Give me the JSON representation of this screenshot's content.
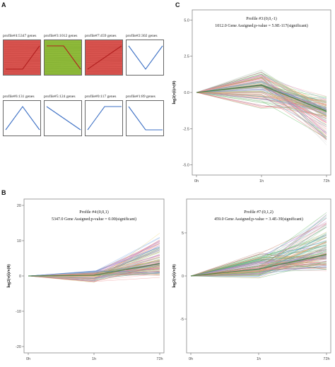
{
  "panels": {
    "a": "A",
    "b": "B",
    "c": "C"
  },
  "profiles": [
    {
      "label": "profile#4:5347 genes",
      "fill": "#d9544f",
      "values": [
        0,
        0,
        1
      ]
    },
    {
      "label": "profile#3:1012 genes",
      "fill": "#8fba3a",
      "values": [
        0,
        0,
        -1
      ]
    },
    {
      "label": "profile#7:459 genes",
      "fill": "#d9544f",
      "values": [
        0,
        1,
        2
      ]
    },
    {
      "label": "profile#2:302 genes",
      "fill": "#ffffff",
      "values": [
        0,
        -1,
        0
      ]
    },
    {
      "label": "profile#6:131 genes",
      "fill": "#ffffff",
      "values": [
        0,
        1,
        0
      ]
    },
    {
      "label": "profile#5:124 genes",
      "fill": "#ffffff",
      "values": [
        0,
        -1,
        -2
      ]
    },
    {
      "label": "profile#0:117 genes",
      "fill": "#ffffff",
      "values": [
        0,
        1,
        1
      ]
    },
    {
      "label": "profile#1:89 genes",
      "fill": "#ffffff",
      "values": [
        0,
        -1,
        -1
      ]
    }
  ],
  "colors": {
    "red_profile": "#d9544f",
    "green_profile": "#8fba3a",
    "profile_line": "#3b6fc4"
  },
  "chart_data": [
    {
      "id": "C",
      "type": "line",
      "title": "Profile #3:(0,0,-1)",
      "subtitle": "1012.0 Gene Assigned;p-value = 5.9E-117(significant)",
      "xlabel": "",
      "ylabel": "log2(v(i)/v(0)",
      "categories": [
        "0h",
        "1h",
        "72h"
      ],
      "ylim": [
        -5.5,
        5.5
      ],
      "yticks": [
        5.0,
        2.5,
        0.0,
        -2.5,
        -5.0
      ],
      "ytick_labels": [
        "5.0",
        "2.5",
        "0.0",
        "-2.5",
        "-5.0"
      ],
      "profile_values": [
        0,
        0,
        -1
      ],
      "spread": {
        "upper": [
          0,
          1.8,
          -0.2
        ],
        "lower": [
          0,
          -1.2,
          -4.3
        ],
        "mean": [
          0,
          0.5,
          -1.3
        ]
      }
    },
    {
      "id": "B1",
      "type": "line",
      "title": "Profile #4:(0,0,1)",
      "subtitle": "5347.0 Gene Assigned;p-value = 0.00(significant)",
      "xlabel": "",
      "ylabel": "log2(v(i)/v(0)",
      "categories": [
        "0h",
        "1h",
        "72h"
      ],
      "ylim": [
        -21,
        21
      ],
      "yticks": [
        20,
        10,
        0,
        -10,
        -20
      ],
      "ytick_labels": [
        "20",
        "10",
        "0",
        "-10",
        "-20"
      ],
      "profile_values": [
        0,
        0,
        1
      ],
      "spread": {
        "upper": [
          0,
          1.5,
          13.0
        ],
        "lower": [
          0,
          -2.0,
          -1.0
        ],
        "mean": [
          0,
          0.2,
          3.5
        ]
      }
    },
    {
      "id": "B2",
      "type": "line",
      "title": "Profile #7:(0,1,2)",
      "subtitle": "459.0 Gene Assigned;p-value = 3.4E-39(significant)",
      "xlabel": "",
      "ylabel": "log2(v(i)/v(0)",
      "categories": [
        "0h",
        "1h",
        "72h"
      ],
      "ylim": [
        -8.6,
        8.6
      ],
      "yticks": [
        5,
        0,
        -5
      ],
      "ytick_labels": [
        "5",
        "0",
        "-5"
      ],
      "profile_values": [
        0,
        1,
        2
      ],
      "spread": {
        "upper": [
          0,
          3.2,
          8.0
        ],
        "lower": [
          0,
          -0.3,
          0.2
        ],
        "mean": [
          0,
          0.8,
          2.5
        ]
      }
    }
  ]
}
